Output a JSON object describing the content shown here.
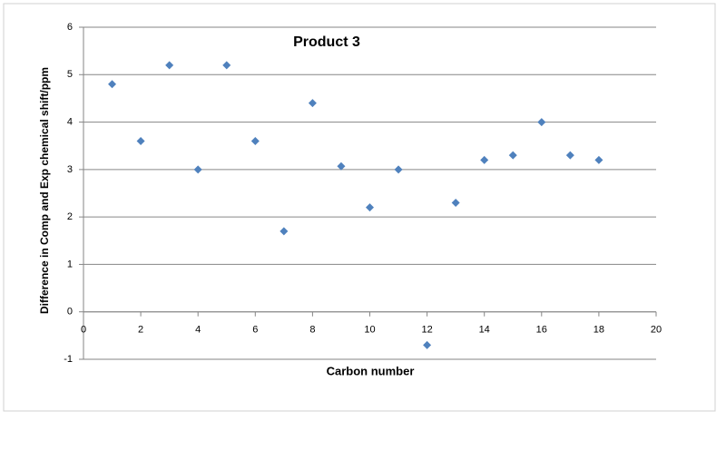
{
  "chart_data": {
    "type": "scatter",
    "title": "Product 3",
    "x_label": "Carbon number",
    "y_label": "Difference in Comp and Exp chemical shift/ppm",
    "series": [
      {
        "color": "#4f81bd",
        "x": [
          1,
          2,
          3,
          4,
          5,
          6,
          7,
          8,
          9,
          10,
          11,
          12,
          13,
          14,
          15,
          16,
          17,
          18
        ],
        "values": [
          4.8,
          3.6,
          5.2,
          3.0,
          5.2,
          3.6,
          1.7,
          4.4,
          3.07,
          2.2,
          3.0,
          -0.7,
          2.3,
          3.2,
          3.3,
          4.0,
          3.3,
          3.2
        ]
      }
    ],
    "xlim": [
      0,
      20
    ],
    "xticks": [
      0,
      2,
      4,
      6,
      8,
      10,
      12,
      14,
      16,
      18,
      20
    ],
    "ylim": [
      -1,
      6
    ],
    "yticks": [
      -1,
      0,
      1,
      2,
      3,
      4,
      5,
      6
    ],
    "grid": true
  }
}
